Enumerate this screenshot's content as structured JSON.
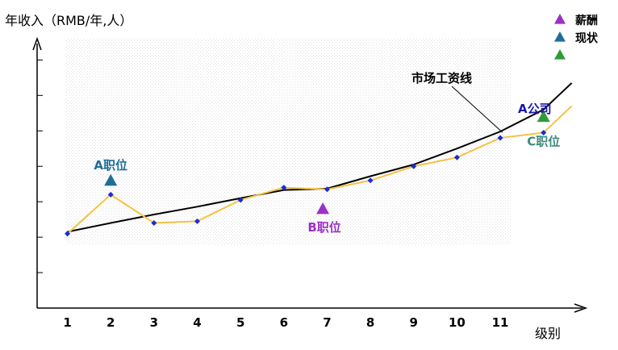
{
  "chart_data": {
    "type": "line",
    "ylabel": "年收入（RMB/年,人）",
    "xlabel": "级别",
    "categories": [
      "1",
      "2",
      "3",
      "4",
      "5",
      "6",
      "7",
      "8",
      "9",
      "10",
      "11"
    ],
    "x_range": [
      0.3,
      12.9
    ],
    "y_range": [
      0,
      7.6
    ],
    "grid": false,
    "series": [
      {
        "name": "A公司",
        "color": "#f5c242",
        "points": [
          [
            1,
            2.1
          ],
          [
            2,
            3.2
          ],
          [
            3,
            2.4
          ],
          [
            4,
            2.45
          ],
          [
            5,
            3.05
          ],
          [
            6,
            3.4
          ],
          [
            7,
            3.35
          ],
          [
            8,
            3.6
          ],
          [
            9,
            4.0
          ],
          [
            10,
            4.25
          ],
          [
            11,
            4.8
          ],
          [
            12,
            4.95
          ],
          [
            12.65,
            5.7
          ]
        ]
      },
      {
        "name": "市场工资线",
        "color": "#000000",
        "x": [
          1,
          2,
          3,
          4,
          5,
          6,
          7,
          8,
          9,
          10,
          11,
          12,
          12.65
        ],
        "y": [
          2.15,
          2.4,
          2.64,
          2.86,
          3.1,
          3.33,
          3.37,
          3.72,
          4.05,
          4.5,
          4.98,
          5.6,
          6.35
        ]
      }
    ],
    "markers": [
      {
        "label": "A职位",
        "x": 2,
        "y": 3.6,
        "color": "#1d6e9b",
        "label_color": "#1d6e9b"
      },
      {
        "label": "B职位",
        "x": 6.9,
        "y": 2.8,
        "color": "#9b30c8",
        "label_color": "#9b30c8"
      },
      {
        "label": "C职位",
        "x": 12,
        "y": 5.4,
        "color": "#2f9b3a",
        "label_color": "#3f8a80"
      }
    ],
    "annotations": {
      "market_line_label": "市场工资线",
      "company_label": "A公司",
      "company_label_color": "#1a1aaa"
    },
    "legend": {
      "placement": "top-right",
      "items": [
        {
          "label": "薪酬",
          "color": "#9b30c8"
        },
        {
          "label": "现状",
          "color": "#1d6e9b"
        },
        {
          "label": "",
          "color": "#2f9b3a"
        }
      ]
    },
    "point_color": "#1a2bd8",
    "backdrop_color": "#f4f4f4"
  }
}
